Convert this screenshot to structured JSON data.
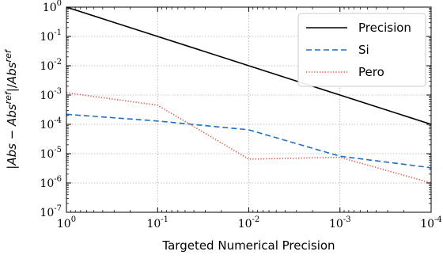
{
  "chart_data": {
    "type": "line",
    "title": "",
    "xlabel": "Targeted Numerical Precision",
    "ylabel": "|Abs − Abs^ref| / Abs^ref",
    "x_scale": "log",
    "y_scale": "log",
    "x_reversed": true,
    "xlim": [
      1,
      0.0001
    ],
    "ylim": [
      1e-07,
      1
    ],
    "x_ticks": [
      {
        "base": "10",
        "exp": "0",
        "value": 1
      },
      {
        "base": "10",
        "exp": "-1",
        "value": 0.1
      },
      {
        "base": "10",
        "exp": "-2",
        "value": 0.01
      },
      {
        "base": "10",
        "exp": "-3",
        "value": 0.001
      },
      {
        "base": "10",
        "exp": "-4",
        "value": 0.0001
      }
    ],
    "y_ticks": [
      {
        "base": "10",
        "exp": "0",
        "value": 1
      },
      {
        "base": "10",
        "exp": "-1",
        "value": 0.1
      },
      {
        "base": "10",
        "exp": "-2",
        "value": 0.01
      },
      {
        "base": "10",
        "exp": "-3",
        "value": 0.001
      },
      {
        "base": "10",
        "exp": "-4",
        "value": 0.0001
      },
      {
        "base": "10",
        "exp": "-5",
        "value": 1e-05
      },
      {
        "base": "10",
        "exp": "-6",
        "value": 1e-06
      },
      {
        "base": "10",
        "exp": "-7",
        "value": 1e-07
      }
    ],
    "grid": true,
    "legend_position": "top-right",
    "series": [
      {
        "name": "Precision",
        "color": "#000000",
        "style": "solid",
        "x": [
          1,
          0.1,
          0.01,
          0.001,
          0.0001
        ],
        "y": [
          1,
          0.1,
          0.01,
          0.001,
          0.0001
        ]
      },
      {
        "name": "Si",
        "color": "#1f6fc4",
        "style": "dashed",
        "x": [
          1,
          0.1,
          0.01,
          0.001,
          0.0001
        ],
        "y": [
          0.00022,
          0.00013,
          6.5e-05,
          8.2e-06,
          3.3e-06
        ]
      },
      {
        "name": "Pero",
        "color": "#e8473b",
        "style": "dotted",
        "x": [
          1,
          0.1,
          0.01,
          0.001,
          0.0001
        ],
        "y": [
          0.0012,
          0.00045,
          6.5e-06,
          7.5e-06,
          1e-06
        ]
      }
    ]
  }
}
